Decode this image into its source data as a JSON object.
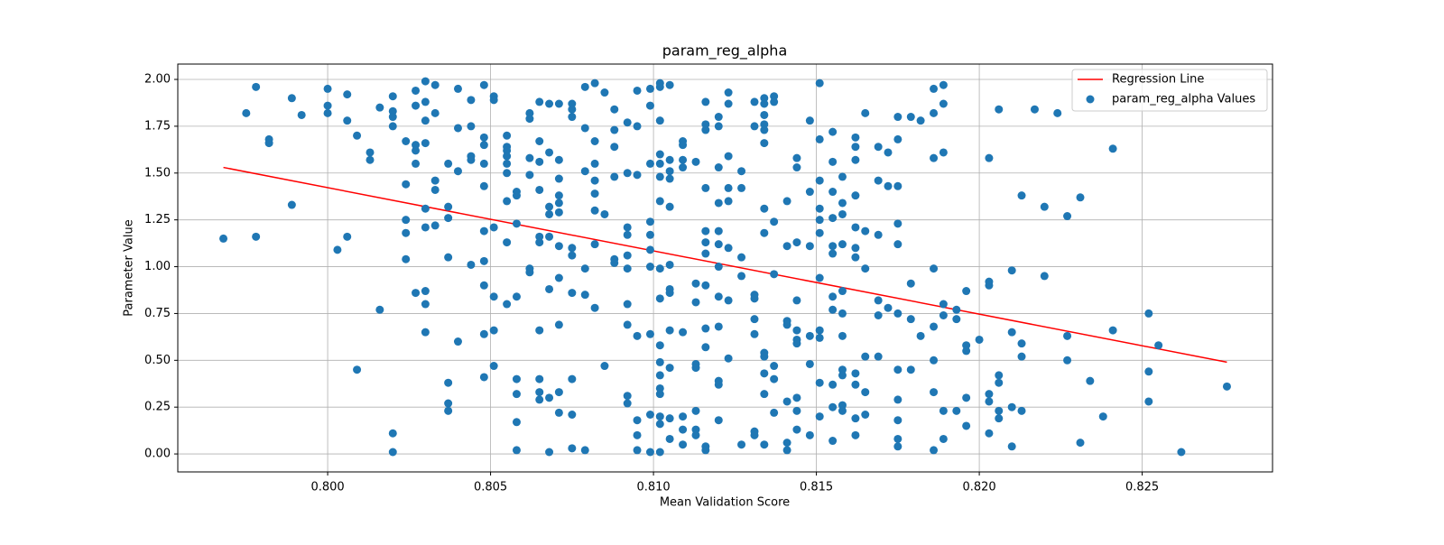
{
  "chart_data": {
    "type": "scatter",
    "title": "param_reg_alpha",
    "xlabel": "Mean Validation Score",
    "ylabel": "Parameter Value",
    "xlim": [
      0.7954,
      0.829
    ],
    "ylim": [
      -0.096,
      2.082
    ],
    "xticks": [
      {
        "value": 0.8,
        "label": "0.800"
      },
      {
        "value": 0.805,
        "label": "0.805"
      },
      {
        "value": 0.81,
        "label": "0.810"
      },
      {
        "value": 0.815,
        "label": "0.815"
      },
      {
        "value": 0.82,
        "label": "0.820"
      },
      {
        "value": 0.825,
        "label": "0.825"
      }
    ],
    "yticks": [
      {
        "value": 0,
        "label": "0.00"
      },
      {
        "value": 0.25,
        "label": "0.25"
      },
      {
        "value": 0.5,
        "label": "0.50"
      },
      {
        "value": 0.75,
        "label": "0.75"
      },
      {
        "value": 1,
        "label": "1.00"
      },
      {
        "value": 1.25,
        "label": "1.25"
      },
      {
        "value": 1.5,
        "label": "1.50"
      },
      {
        "value": 1.75,
        "label": "1.75"
      },
      {
        "value": 2,
        "label": "2.00"
      }
    ],
    "grid": true,
    "legend": "upper right",
    "series": [
      {
        "name": "Regression Line",
        "type": "line",
        "color": "#ff0000",
        "x": [
          0.7968,
          0.8276
        ],
        "values": [
          1.53,
          0.49
        ]
      },
      {
        "name": "param_reg_alpha Values",
        "type": "scatter",
        "color": "#1f77b4",
        "x": [
          0.7968,
          0.7975,
          0.7978,
          0.7978,
          0.7982,
          0.7982,
          0.7989,
          0.7989,
          0.7992,
          0.8,
          0.8,
          0.8,
          0.8003,
          0.8006,
          0.8006,
          0.8006,
          0.8009,
          0.8009,
          0.8013,
          0.8013,
          0.8016,
          0.8016,
          0.802,
          0.802,
          0.802,
          0.802,
          0.802,
          0.802,
          0.8024,
          0.8024,
          0.8024,
          0.8024,
          0.8024,
          0.8027,
          0.8027,
          0.8027,
          0.8027,
          0.8027,
          0.8027,
          0.803,
          0.803,
          0.803,
          0.803,
          0.803,
          0.803,
          0.803,
          0.803,
          0.803,
          0.8033,
          0.8033,
          0.8033,
          0.8033,
          0.8033,
          0.8037,
          0.8037,
          0.8037,
          0.8037,
          0.8037,
          0.8037,
          0.8037,
          0.804,
          0.804,
          0.804,
          0.804,
          0.8044,
          0.8044,
          0.8044,
          0.8044,
          0.8044,
          0.8048,
          0.8048,
          0.8048,
          0.8048,
          0.8048,
          0.8048,
          0.8048,
          0.8048,
          0.8048,
          0.8048,
          0.8051,
          0.8051,
          0.8051,
          0.8051,
          0.8051,
          0.8051,
          0.8055,
          0.8055,
          0.8055,
          0.8055,
          0.8055,
          0.8055,
          0.8055,
          0.8055,
          0.8055,
          0.8058,
          0.8058,
          0.8058,
          0.8058,
          0.8058,
          0.8058,
          0.8058,
          0.8058,
          0.8062,
          0.8062,
          0.8062,
          0.8062,
          0.8062,
          0.8062,
          0.8065,
          0.8065,
          0.8065,
          0.8065,
          0.8065,
          0.8065,
          0.8065,
          0.8065,
          0.8065,
          0.8065,
          0.8068,
          0.8068,
          0.8068,
          0.8068,
          0.8068,
          0.8068,
          0.8068,
          0.8068,
          0.8071,
          0.8071,
          0.8071,
          0.8071,
          0.8071,
          0.8071,
          0.8071,
          0.8071,
          0.8071,
          0.8071,
          0.8071,
          0.8075,
          0.8075,
          0.8075,
          0.8075,
          0.8075,
          0.8075,
          0.8075,
          0.8075,
          0.8075,
          0.8079,
          0.8079,
          0.8079,
          0.8079,
          0.8079,
          0.8079,
          0.8082,
          0.8082,
          0.8082,
          0.8082,
          0.8082,
          0.8082,
          0.8082,
          0.8082,
          0.8085,
          0.8085,
          0.8085,
          0.8088,
          0.8088,
          0.8088,
          0.8088,
          0.8088,
          0.8088,
          0.8092,
          0.8092,
          0.8092,
          0.8092,
          0.8092,
          0.8092,
          0.8092,
          0.8092,
          0.8092,
          0.8092,
          0.8095,
          0.8095,
          0.8095,
          0.8095,
          0.8095,
          0.8095,
          0.8095,
          0.8099,
          0.8099,
          0.8099,
          0.8099,
          0.8099,
          0.8099,
          0.8099,
          0.8099,
          0.8099,
          0.8099,
          0.8102,
          0.8102,
          0.8102,
          0.8102,
          0.8102,
          0.8102,
          0.8102,
          0.8102,
          0.8102,
          0.8102,
          0.8102,
          0.8102,
          0.8102,
          0.8102,
          0.8102,
          0.8102,
          0.8102,
          0.8105,
          0.8105,
          0.8105,
          0.8105,
          0.8105,
          0.8105,
          0.8105,
          0.8105,
          0.8105,
          0.8105,
          0.8105,
          0.8105,
          0.8109,
          0.8109,
          0.8109,
          0.8109,
          0.8109,
          0.8109,
          0.8109,
          0.8109,
          0.8113,
          0.8113,
          0.8113,
          0.8113,
          0.8113,
          0.8113,
          0.8113,
          0.8113,
          0.8116,
          0.8116,
          0.8116,
          0.8116,
          0.8116,
          0.8116,
          0.8116,
          0.8116,
          0.8116,
          0.8116,
          0.8116,
          0.8116,
          0.812,
          0.812,
          0.812,
          0.812,
          0.812,
          0.812,
          0.812,
          0.812,
          0.812,
          0.812,
          0.812,
          0.812,
          0.8123,
          0.8123,
          0.8123,
          0.8123,
          0.8123,
          0.8123,
          0.8123,
          0.8123,
          0.8127,
          0.8127,
          0.8127,
          0.8127,
          0.8127,
          0.8131,
          0.8131,
          0.8131,
          0.8131,
          0.8131,
          0.8131,
          0.8131,
          0.8131,
          0.8134,
          0.8134,
          0.8134,
          0.8134,
          0.8134,
          0.8134,
          0.8134,
          0.8134,
          0.8134,
          0.8134,
          0.8134,
          0.8134,
          0.8134,
          0.8137,
          0.8137,
          0.8137,
          0.8137,
          0.8137,
          0.8137,
          0.8137,
          0.8141,
          0.8141,
          0.8141,
          0.8141,
          0.8141,
          0.8141,
          0.8141,
          0.8144,
          0.8144,
          0.8144,
          0.8144,
          0.8144,
          0.8144,
          0.8144,
          0.8144,
          0.8144,
          0.8144,
          0.8148,
          0.8148,
          0.8148,
          0.8148,
          0.8148,
          0.8148,
          0.8151,
          0.8151,
          0.8151,
          0.8151,
          0.8151,
          0.8151,
          0.8151,
          0.8151,
          0.8151,
          0.8151,
          0.8151,
          0.8155,
          0.8155,
          0.8155,
          0.8155,
          0.8155,
          0.8155,
          0.8155,
          0.8155,
          0.8155,
          0.8155,
          0.8155,
          0.8158,
          0.8158,
          0.8158,
          0.8158,
          0.8158,
          0.8158,
          0.8158,
          0.8158,
          0.8158,
          0.8158,
          0.8158,
          0.8162,
          0.8162,
          0.8162,
          0.8162,
          0.8162,
          0.8162,
          0.8162,
          0.8162,
          0.8162,
          0.8162,
          0.8162,
          0.8165,
          0.8165,
          0.8165,
          0.8165,
          0.8165,
          0.8165,
          0.8169,
          0.8169,
          0.8169,
          0.8169,
          0.8169,
          0.8169,
          0.8172,
          0.8172,
          0.8172,
          0.8175,
          0.8175,
          0.8175,
          0.8175,
          0.8175,
          0.8175,
          0.8175,
          0.8175,
          0.8175,
          0.8175,
          0.8175,
          0.8179,
          0.8179,
          0.8179,
          0.8179,
          0.8182,
          0.8182,
          0.8186,
          0.8186,
          0.8186,
          0.8186,
          0.8186,
          0.8186,
          0.8186,
          0.8186,
          0.8189,
          0.8189,
          0.8189,
          0.8189,
          0.8189,
          0.8189,
          0.8189,
          0.8193,
          0.8193,
          0.8193,
          0.8196,
          0.8196,
          0.8196,
          0.8196,
          0.8196,
          0.82,
          0.8203,
          0.8203,
          0.8203,
          0.8203,
          0.8203,
          0.8203,
          0.8206,
          0.8206,
          0.8206,
          0.8206,
          0.8206,
          0.821,
          0.821,
          0.821,
          0.821,
          0.8213,
          0.8213,
          0.8213,
          0.8213,
          0.8217,
          0.822,
          0.822,
          0.8224,
          0.8227,
          0.8227,
          0.8227,
          0.8231,
          0.8231,
          0.8234,
          0.8238,
          0.8241,
          0.8241,
          0.8252,
          0.8252,
          0.8252,
          0.8255,
          0.8262,
          0.8276
        ],
        "values": [
          1.15,
          1.82,
          1.96,
          1.16,
          1.68,
          1.66,
          1.9,
          1.33,
          1.81,
          1.95,
          1.86,
          1.82,
          1.09,
          1.92,
          1.78,
          1.16,
          1.7,
          0.45,
          1.61,
          1.57,
          1.85,
          0.77,
          1.91,
          1.83,
          1.8,
          1.75,
          0.11,
          0.01,
          1.67,
          1.44,
          1.25,
          1.18,
          1.04,
          1.94,
          1.86,
          1.65,
          1.62,
          1.55,
          0.86,
          1.99,
          1.88,
          1.78,
          1.66,
          1.31,
          1.21,
          0.87,
          0.8,
          0.65,
          1.97,
          1.82,
          1.46,
          1.41,
          1.22,
          1.55,
          1.32,
          1.26,
          1.05,
          0.38,
          0.27,
          0.23,
          1.95,
          1.74,
          1.51,
          0.6,
          1.89,
          1.75,
          1.59,
          1.57,
          1.01,
          1.97,
          1.69,
          1.65,
          1.55,
          1.43,
          1.19,
          1.03,
          0.9,
          0.64,
          0.41,
          1.91,
          1.89,
          1.21,
          0.84,
          0.66,
          0.47,
          1.7,
          1.64,
          1.62,
          1.59,
          1.55,
          1.5,
          1.35,
          1.13,
          0.8,
          1.4,
          1.38,
          1.23,
          0.84,
          0.4,
          0.32,
          0.17,
          0.02,
          1.82,
          1.79,
          1.58,
          1.49,
          0.99,
          0.97,
          1.88,
          1.67,
          1.56,
          1.41,
          1.16,
          1.13,
          0.66,
          0.4,
          0.33,
          0.29,
          1.87,
          1.61,
          1.32,
          1.28,
          1.16,
          0.88,
          0.3,
          0.01,
          1.87,
          1.57,
          1.47,
          1.38,
          1.34,
          1.29,
          1.11,
          0.94,
          0.69,
          0.33,
          0.22,
          1.87,
          1.84,
          1.8,
          1.1,
          1.06,
          0.86,
          0.4,
          0.21,
          0.03,
          1.96,
          1.74,
          1.51,
          0.99,
          0.85,
          0.02,
          1.98,
          1.67,
          1.55,
          1.46,
          1.39,
          1.3,
          1.12,
          0.78,
          1.93,
          1.28,
          0.47,
          1.84,
          1.73,
          1.64,
          1.48,
          1.04,
          1.02,
          1.77,
          1.5,
          1.21,
          1.17,
          1.06,
          0.99,
          0.8,
          0.69,
          0.31,
          0.27,
          1.94,
          1.75,
          1.49,
          0.63,
          0.18,
          0.1,
          0.02,
          1.95,
          1.86,
          1.55,
          1.24,
          1.17,
          1.09,
          1.0,
          0.64,
          0.21,
          0.01,
          1.98,
          1.96,
          1.78,
          1.6,
          1.55,
          1.48,
          1.35,
          0.99,
          0.83,
          0.58,
          0.49,
          0.42,
          0.35,
          0.32,
          0.2,
          0.16,
          0.01,
          1.97,
          1.57,
          1.51,
          1.47,
          1.32,
          1.01,
          0.88,
          0.86,
          0.66,
          0.46,
          0.19,
          0.08,
          1.67,
          1.65,
          1.57,
          1.53,
          0.65,
          0.2,
          0.13,
          0.05,
          1.56,
          0.91,
          0.81,
          0.48,
          0.46,
          0.23,
          0.13,
          0.1,
          1.88,
          1.76,
          1.73,
          1.42,
          1.19,
          1.13,
          1.07,
          0.9,
          0.67,
          0.57,
          0.04,
          0.02,
          1.8,
          1.75,
          1.53,
          1.34,
          1.19,
          1.12,
          1.0,
          0.84,
          0.68,
          0.39,
          0.37,
          0.18,
          1.93,
          1.87,
          1.59,
          1.42,
          1.35,
          1.1,
          0.82,
          0.51,
          1.51,
          1.42,
          1.05,
          0.95,
          0.05,
          1.88,
          1.75,
          0.85,
          0.83,
          0.72,
          0.64,
          0.12,
          0.1,
          1.9,
          1.87,
          1.81,
          1.76,
          1.73,
          1.66,
          1.31,
          1.18,
          0.54,
          0.52,
          0.43,
          0.32,
          0.05,
          1.91,
          1.88,
          1.24,
          0.96,
          0.47,
          0.4,
          0.22,
          1.35,
          1.11,
          0.71,
          0.69,
          0.28,
          0.06,
          0.02,
          1.58,
          1.53,
          1.13,
          0.82,
          0.66,
          0.61,
          0.59,
          0.3,
          0.23,
          0.13,
          1.78,
          1.4,
          1.11,
          0.63,
          0.48,
          0.1,
          1.98,
          1.68,
          1.46,
          1.31,
          1.25,
          1.18,
          0.94,
          0.66,
          0.62,
          0.38,
          0.2,
          1.72,
          1.56,
          1.4,
          1.26,
          1.11,
          1.07,
          0.84,
          0.77,
          0.37,
          0.25,
          0.07,
          1.48,
          1.34,
          1.28,
          1.12,
          0.87,
          0.75,
          0.63,
          0.45,
          0.42,
          0.26,
          0.23,
          1.69,
          1.64,
          1.57,
          1.38,
          1.21,
          1.1,
          1.05,
          0.43,
          0.37,
          0.19,
          0.1,
          1.82,
          1.19,
          0.99,
          0.52,
          0.33,
          0.21,
          1.64,
          1.46,
          1.17,
          0.82,
          0.74,
          0.52,
          1.61,
          1.43,
          0.78,
          1.8,
          1.68,
          1.43,
          1.23,
          1.12,
          0.75,
          0.45,
          0.29,
          0.18,
          0.08,
          0.04,
          1.8,
          0.91,
          0.72,
          0.45,
          1.78,
          0.63,
          1.95,
          1.82,
          1.58,
          0.99,
          0.68,
          0.5,
          0.33,
          0.02,
          1.97,
          1.87,
          1.61,
          0.8,
          0.74,
          0.23,
          0.08,
          0.77,
          0.72,
          0.23,
          0.87,
          0.58,
          0.55,
          0.3,
          0.15,
          0.61,
          1.58,
          0.92,
          0.9,
          0.32,
          0.28,
          0.11,
          1.84,
          0.42,
          0.38,
          0.23,
          0.19,
          0.98,
          0.65,
          0.25,
          0.04,
          1.38,
          0.59,
          0.52,
          0.23,
          1.84,
          1.32,
          0.95,
          1.82,
          1.27,
          0.63,
          0.5,
          1.37,
          0.06,
          0.39,
          0.2,
          1.63,
          0.66,
          0.75,
          0.44,
          0.28,
          0.58,
          0.01,
          0.36
        ]
      }
    ]
  }
}
